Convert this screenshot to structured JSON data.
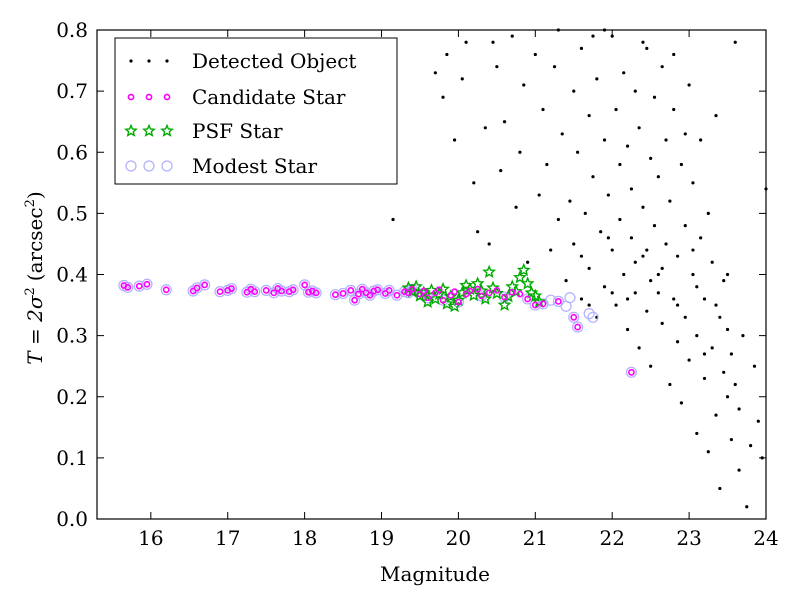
{
  "chart_data": {
    "type": "scatter",
    "xlabel": "Magnitude",
    "ylabel_prefix": "T = 2σ",
    "ylabel_unit": "(arcsec",
    "xlim": [
      15.3,
      24.0
    ],
    "ylim": [
      0.0,
      0.8
    ],
    "x_ticks": [
      "16",
      "17",
      "18",
      "19",
      "20",
      "21",
      "22",
      "23",
      "24"
    ],
    "y_ticks": [
      "0.0",
      "0.1",
      "0.2",
      "0.3",
      "0.4",
      "0.5",
      "0.6",
      "0.7",
      "0.8"
    ],
    "grid": false,
    "legend_position": "top-left",
    "series": [
      {
        "name": "Detected Object",
        "marker": "dot",
        "color": "#000000",
        "points": [
          [
            19.1,
            0.66
          ],
          [
            19.15,
            0.49
          ],
          [
            19.7,
            0.73
          ],
          [
            19.8,
            0.69
          ],
          [
            19.85,
            0.76
          ],
          [
            19.95,
            0.62
          ],
          [
            20.05,
            0.72
          ],
          [
            20.1,
            0.78
          ],
          [
            20.2,
            0.55
          ],
          [
            20.25,
            0.47
          ],
          [
            20.35,
            0.64
          ],
          [
            20.4,
            0.45
          ],
          [
            20.45,
            0.78
          ],
          [
            20.55,
            0.57
          ],
          [
            20.6,
            0.65
          ],
          [
            20.7,
            0.79
          ],
          [
            20.75,
            0.51
          ],
          [
            20.8,
            0.6
          ],
          [
            20.85,
            0.71
          ],
          [
            20.9,
            0.42
          ],
          [
            21.0,
            0.76
          ],
          [
            21.05,
            0.53
          ],
          [
            21.1,
            0.67
          ],
          [
            21.15,
            0.58
          ],
          [
            21.2,
            0.44
          ],
          [
            21.25,
            0.74
          ],
          [
            21.3,
            0.49
          ],
          [
            21.35,
            0.63
          ],
          [
            21.4,
            0.39
          ],
          [
            21.45,
            0.52
          ],
          [
            21.5,
            0.7
          ],
          [
            21.5,
            0.45
          ],
          [
            21.55,
            0.6
          ],
          [
            21.6,
            0.36
          ],
          [
            21.6,
            0.77
          ],
          [
            21.65,
            0.5
          ],
          [
            21.7,
            0.66
          ],
          [
            21.7,
            0.41
          ],
          [
            21.75,
            0.56
          ],
          [
            21.8,
            0.33
          ],
          [
            21.8,
            0.72
          ],
          [
            21.85,
            0.47
          ],
          [
            21.9,
            0.62
          ],
          [
            21.9,
            0.38
          ],
          [
            21.95,
            0.53
          ],
          [
            22.0,
            0.79
          ],
          [
            22.0,
            0.44
          ],
          [
            22.05,
            0.67
          ],
          [
            22.05,
            0.35
          ],
          [
            22.1,
            0.58
          ],
          [
            22.1,
            0.49
          ],
          [
            22.15,
            0.73
          ],
          [
            22.15,
            0.4
          ],
          [
            22.2,
            0.61
          ],
          [
            22.2,
            0.31
          ],
          [
            22.25,
            0.54
          ],
          [
            22.25,
            0.46
          ],
          [
            22.3,
            0.7
          ],
          [
            22.3,
            0.37
          ],
          [
            22.35,
            0.64
          ],
          [
            22.35,
            0.28
          ],
          [
            22.4,
            0.51
          ],
          [
            22.4,
            0.43
          ],
          [
            22.45,
            0.77
          ],
          [
            22.45,
            0.34
          ],
          [
            22.5,
            0.59
          ],
          [
            22.5,
            0.25
          ],
          [
            22.55,
            0.48
          ],
          [
            22.55,
            0.69
          ],
          [
            22.6,
            0.4
          ],
          [
            22.6,
            0.56
          ],
          [
            22.65,
            0.32
          ],
          [
            22.65,
            0.74
          ],
          [
            22.7,
            0.45
          ],
          [
            22.7,
            0.62
          ],
          [
            22.75,
            0.22
          ],
          [
            22.75,
            0.52
          ],
          [
            22.8,
            0.36
          ],
          [
            22.8,
            0.67
          ],
          [
            22.85,
            0.29
          ],
          [
            22.85,
            0.43
          ],
          [
            22.9,
            0.58
          ],
          [
            22.9,
            0.19
          ],
          [
            22.95,
            0.48
          ],
          [
            22.95,
            0.33
          ],
          [
            23.0,
            0.71
          ],
          [
            23.0,
            0.26
          ],
          [
            23.05,
            0.4
          ],
          [
            23.05,
            0.55
          ],
          [
            23.1,
            0.14
          ],
          [
            23.1,
            0.3
          ],
          [
            23.15,
            0.46
          ],
          [
            23.15,
            0.62
          ],
          [
            23.2,
            0.23
          ],
          [
            23.2,
            0.36
          ],
          [
            23.25,
            0.5
          ],
          [
            23.25,
            0.11
          ],
          [
            23.3,
            0.28
          ],
          [
            23.3,
            0.42
          ],
          [
            23.35,
            0.66
          ],
          [
            23.35,
            0.17
          ],
          [
            23.4,
            0.33
          ],
          [
            23.4,
            0.05
          ],
          [
            23.45,
            0.24
          ],
          [
            23.45,
            0.39
          ],
          [
            23.5,
            0.2
          ],
          [
            23.5,
            0.31
          ],
          [
            23.55,
            0.13
          ],
          [
            23.55,
            0.27
          ],
          [
            23.6,
            0.78
          ],
          [
            23.6,
            0.22
          ],
          [
            23.65,
            0.08
          ],
          [
            23.65,
            0.18
          ],
          [
            23.7,
            0.3
          ],
          [
            23.75,
            0.02
          ],
          [
            23.8,
            0.12
          ],
          [
            23.85,
            0.25
          ],
          [
            23.9,
            0.16
          ],
          [
            23.95,
            0.1
          ],
          [
            24.0,
            0.54
          ],
          [
            21.75,
            0.79
          ],
          [
            22.4,
            0.78
          ],
          [
            22.8,
            0.76
          ],
          [
            21.3,
            0.8
          ],
          [
            21.9,
            0.8
          ],
          [
            20.5,
            0.74
          ],
          [
            22.95,
            0.63
          ],
          [
            23.5,
            0.4
          ],
          [
            22.5,
            0.39
          ],
          [
            22.3,
            0.42
          ],
          [
            22.0,
            0.37
          ],
          [
            21.7,
            0.35
          ],
          [
            22.6,
            0.37
          ],
          [
            22.2,
            0.36
          ],
          [
            23.1,
            0.38
          ],
          [
            23.2,
            0.27
          ],
          [
            22.65,
            0.41
          ],
          [
            22.45,
            0.44
          ],
          [
            21.95,
            0.46
          ],
          [
            21.6,
            0.43
          ],
          [
            23.05,
            0.44
          ],
          [
            23.35,
            0.35
          ],
          [
            22.85,
            0.35
          ]
        ]
      },
      {
        "name": "Candidate Star",
        "marker": "circle",
        "color": "#ff00ff",
        "points": [
          [
            15.65,
            0.382
          ],
          [
            15.7,
            0.379
          ],
          [
            15.85,
            0.381
          ],
          [
            15.95,
            0.384
          ],
          [
            16.2,
            0.375
          ],
          [
            16.55,
            0.373
          ],
          [
            16.6,
            0.378
          ],
          [
            16.7,
            0.383
          ],
          [
            16.9,
            0.372
          ],
          [
            17.0,
            0.374
          ],
          [
            17.05,
            0.377
          ],
          [
            17.25,
            0.371
          ],
          [
            17.3,
            0.376
          ],
          [
            17.35,
            0.372
          ],
          [
            17.5,
            0.374
          ],
          [
            17.6,
            0.37
          ],
          [
            17.65,
            0.377
          ],
          [
            17.7,
            0.373
          ],
          [
            17.8,
            0.372
          ],
          [
            17.85,
            0.375
          ],
          [
            18.0,
            0.383
          ],
          [
            18.05,
            0.371
          ],
          [
            18.1,
            0.373
          ],
          [
            18.15,
            0.37
          ],
          [
            18.4,
            0.367
          ],
          [
            18.5,
            0.369
          ],
          [
            18.6,
            0.374
          ],
          [
            18.65,
            0.358
          ],
          [
            18.7,
            0.368
          ],
          [
            18.75,
            0.376
          ],
          [
            18.8,
            0.37
          ],
          [
            18.85,
            0.366
          ],
          [
            18.9,
            0.373
          ],
          [
            18.95,
            0.375
          ],
          [
            19.05,
            0.369
          ],
          [
            19.1,
            0.374
          ],
          [
            19.2,
            0.366
          ],
          [
            19.3,
            0.372
          ],
          [
            19.35,
            0.37
          ],
          [
            19.4,
            0.376
          ],
          [
            19.5,
            0.368
          ],
          [
            19.55,
            0.373
          ],
          [
            19.6,
            0.362
          ],
          [
            19.7,
            0.37
          ],
          [
            19.75,
            0.375
          ],
          [
            19.8,
            0.358
          ],
          [
            19.9,
            0.366
          ],
          [
            19.95,
            0.372
          ],
          [
            20.0,
            0.355
          ],
          [
            20.1,
            0.368
          ],
          [
            20.15,
            0.373
          ],
          [
            20.25,
            0.376
          ],
          [
            20.3,
            0.365
          ],
          [
            20.4,
            0.37
          ],
          [
            20.5,
            0.374
          ],
          [
            20.6,
            0.363
          ],
          [
            20.7,
            0.371
          ],
          [
            20.8,
            0.368
          ],
          [
            20.9,
            0.36
          ],
          [
            21.0,
            0.35
          ],
          [
            21.1,
            0.352
          ],
          [
            21.3,
            0.356
          ],
          [
            21.5,
            0.33
          ],
          [
            21.55,
            0.314
          ],
          [
            22.25,
            0.24
          ]
        ]
      },
      {
        "name": "PSF Star",
        "marker": "star",
        "color": "#00aa00",
        "points": [
          [
            19.35,
            0.378
          ],
          [
            19.4,
            0.372
          ],
          [
            19.45,
            0.38
          ],
          [
            19.5,
            0.365
          ],
          [
            19.55,
            0.37
          ],
          [
            19.6,
            0.355
          ],
          [
            19.65,
            0.374
          ],
          [
            19.7,
            0.36
          ],
          [
            19.75,
            0.368
          ],
          [
            19.8,
            0.376
          ],
          [
            19.85,
            0.352
          ],
          [
            19.9,
            0.364
          ],
          [
            19.95,
            0.348
          ],
          [
            20.0,
            0.358
          ],
          [
            20.05,
            0.37
          ],
          [
            20.1,
            0.382
          ],
          [
            20.15,
            0.376
          ],
          [
            20.2,
            0.366
          ],
          [
            20.25,
            0.385
          ],
          [
            20.3,
            0.373
          ],
          [
            20.35,
            0.36
          ],
          [
            20.4,
            0.404
          ],
          [
            20.45,
            0.378
          ],
          [
            20.5,
            0.369
          ],
          [
            20.6,
            0.35
          ],
          [
            20.65,
            0.364
          ],
          [
            20.7,
            0.38
          ],
          [
            20.75,
            0.372
          ],
          [
            20.8,
            0.395
          ],
          [
            20.85,
            0.407
          ],
          [
            20.9,
            0.385
          ],
          [
            20.95,
            0.37
          ],
          [
            21.0,
            0.365
          ],
          [
            21.05,
            0.355
          ]
        ]
      },
      {
        "name": "Modest Star",
        "marker": "open-circle",
        "color": "#b0b0ff",
        "points": [
          [
            15.65,
            0.382
          ],
          [
            15.7,
            0.379
          ],
          [
            15.85,
            0.381
          ],
          [
            15.95,
            0.384
          ],
          [
            16.2,
            0.375
          ],
          [
            16.55,
            0.373
          ],
          [
            16.6,
            0.378
          ],
          [
            16.7,
            0.383
          ],
          [
            16.9,
            0.372
          ],
          [
            17.0,
            0.374
          ],
          [
            17.05,
            0.377
          ],
          [
            17.25,
            0.371
          ],
          [
            17.3,
            0.376
          ],
          [
            17.35,
            0.372
          ],
          [
            17.5,
            0.374
          ],
          [
            17.6,
            0.37
          ],
          [
            17.65,
            0.377
          ],
          [
            17.7,
            0.373
          ],
          [
            17.8,
            0.372
          ],
          [
            17.85,
            0.375
          ],
          [
            18.0,
            0.383
          ],
          [
            18.05,
            0.371
          ],
          [
            18.1,
            0.373
          ],
          [
            18.15,
            0.37
          ],
          [
            18.4,
            0.367
          ],
          [
            18.5,
            0.369
          ],
          [
            18.6,
            0.374
          ],
          [
            18.65,
            0.358
          ],
          [
            18.7,
            0.368
          ],
          [
            18.75,
            0.376
          ],
          [
            18.8,
            0.37
          ],
          [
            18.85,
            0.366
          ],
          [
            18.9,
            0.373
          ],
          [
            18.95,
            0.375
          ],
          [
            19.05,
            0.369
          ],
          [
            19.1,
            0.374
          ],
          [
            19.2,
            0.366
          ],
          [
            19.3,
            0.372
          ],
          [
            19.35,
            0.37
          ],
          [
            19.4,
            0.376
          ],
          [
            19.5,
            0.368
          ],
          [
            19.6,
            0.362
          ],
          [
            19.8,
            0.358
          ],
          [
            20.0,
            0.355
          ],
          [
            20.3,
            0.365
          ],
          [
            20.6,
            0.363
          ],
          [
            20.9,
            0.36
          ],
          [
            21.0,
            0.35
          ],
          [
            21.1,
            0.352
          ],
          [
            21.2,
            0.358
          ],
          [
            21.3,
            0.356
          ],
          [
            21.4,
            0.348
          ],
          [
            21.45,
            0.362
          ],
          [
            21.5,
            0.33
          ],
          [
            21.55,
            0.314
          ],
          [
            21.7,
            0.336
          ],
          [
            21.75,
            0.33
          ],
          [
            22.25,
            0.24
          ]
        ]
      }
    ]
  }
}
